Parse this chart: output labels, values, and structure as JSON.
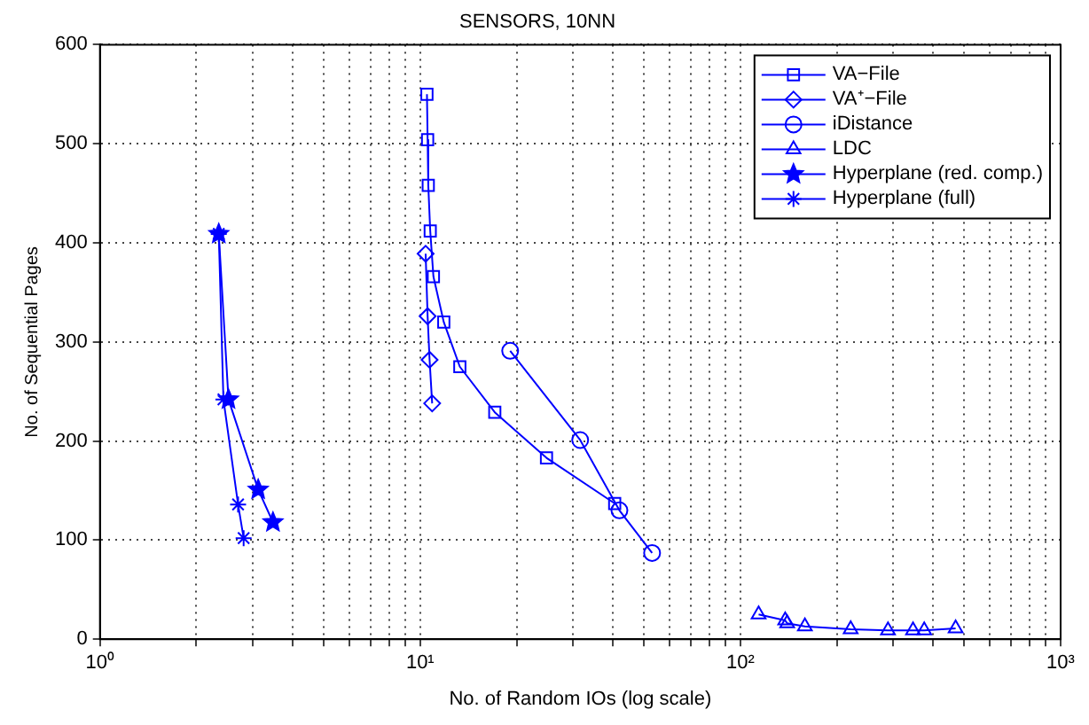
{
  "chart_data": {
    "type": "line",
    "title": "SENSORS, 10NN",
    "xlabel": "No. of Random IOs (log scale)",
    "ylabel": "No. of Sequential Pages",
    "log": "x",
    "grid": true,
    "legend": "top right",
    "line_style": "solid",
    "xlim": [
      1,
      1000
    ],
    "xticks": [
      {
        "value": 1,
        "label": "10⁰"
      },
      {
        "value": 2,
        "label": null
      },
      {
        "value": 3,
        "label": null
      },
      {
        "value": 4,
        "label": null
      },
      {
        "value": 5,
        "label": null
      },
      {
        "value": 6,
        "label": null
      },
      {
        "value": 7,
        "label": null
      },
      {
        "value": 8,
        "label": null
      },
      {
        "value": 9,
        "label": null
      },
      {
        "value": 10,
        "label": "10¹"
      },
      {
        "value": 20,
        "label": null
      },
      {
        "value": 30,
        "label": null
      },
      {
        "value": 40,
        "label": null
      },
      {
        "value": 50,
        "label": null
      },
      {
        "value": 60,
        "label": null
      },
      {
        "value": 70,
        "label": null
      },
      {
        "value": 80,
        "label": null
      },
      {
        "value": 90,
        "label": null
      },
      {
        "value": 100,
        "label": "10²"
      },
      {
        "value": 200,
        "label": null
      },
      {
        "value": 300,
        "label": null
      },
      {
        "value": 400,
        "label": null
      },
      {
        "value": 500,
        "label": null
      },
      {
        "value": 600,
        "label": null
      },
      {
        "value": 700,
        "label": null
      },
      {
        "value": 800,
        "label": null
      },
      {
        "value": 900,
        "label": null
      },
      {
        "value": 1000,
        "label": "10³"
      }
    ],
    "ylim": [
      0,
      600
    ],
    "yticks": [
      0,
      100,
      200,
      300,
      400,
      500,
      600
    ],
    "series": [
      {
        "name": "VA−File",
        "color": "#0000ff",
        "marker": "square",
        "x": [
          10.5,
          10.55,
          10.6,
          10.75,
          11.0,
          11.85,
          13.3,
          17.1,
          24.8,
          40.5
        ],
        "values": [
          550,
          504,
          458,
          412,
          366,
          320,
          275,
          229,
          183,
          137
        ]
      },
      {
        "name": "VA⁺−File",
        "color": "#0000ff",
        "marker": "diamond",
        "x": [
          10.4,
          10.55,
          10.7,
          10.9
        ],
        "values": [
          389,
          326,
          282,
          238
        ]
      },
      {
        "name": "iDistance",
        "color": "#0000ff",
        "marker": "circle",
        "x": [
          19.1,
          31.6,
          41.9,
          53
        ],
        "values": [
          291,
          201,
          130,
          87
        ]
      },
      {
        "name": "LDC",
        "color": "#0000ff",
        "marker": "triangle",
        "x": [
          114,
          138,
          140,
          159,
          221,
          289,
          346,
          375,
          470
        ],
        "values": [
          25,
          19,
          16,
          13,
          10,
          9,
          9,
          9,
          11
        ]
      },
      {
        "name": "Hyperplane (red. comp.)",
        "color": "#0000ff",
        "marker": "star",
        "x": [
          2.35,
          2.52,
          3.12,
          3.47
        ],
        "values": [
          409,
          242,
          151,
          118
        ]
      },
      {
        "name": "Hyperplane (full)",
        "color": "#0000ff",
        "marker": "cross",
        "x": [
          2.35,
          2.43,
          2.7,
          2.81
        ],
        "values": [
          409,
          242,
          136,
          102
        ]
      }
    ]
  }
}
